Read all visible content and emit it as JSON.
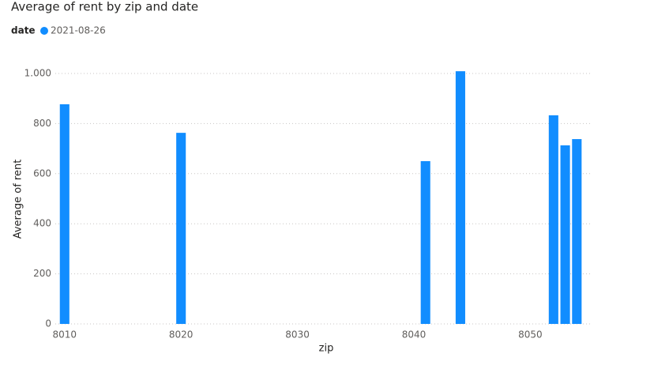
{
  "chart_data": {
    "type": "bar",
    "title": "Average of rent by zip and date",
    "legend_title": "date",
    "x_label": "zip",
    "y_label": "Average of rent",
    "x": [
      8010,
      8020,
      8041,
      8044,
      8052,
      8053,
      8054
    ],
    "series": [
      {
        "name": "2021-08-26",
        "color": "#118DFF",
        "values": [
          877,
          763,
          650,
          1009,
          833,
          713,
          738
        ]
      }
    ],
    "xlim": [
      8009.2,
      8055.2
    ],
    "xticks": [
      8010,
      8020,
      8030,
      8040,
      8050
    ],
    "ylim": [
      0,
      1000
    ],
    "yticks": [
      0,
      200,
      400,
      600,
      800,
      {
        "value": 1000,
        "label": "1.000"
      }
    ],
    "grid": true,
    "legend": "top-left"
  }
}
